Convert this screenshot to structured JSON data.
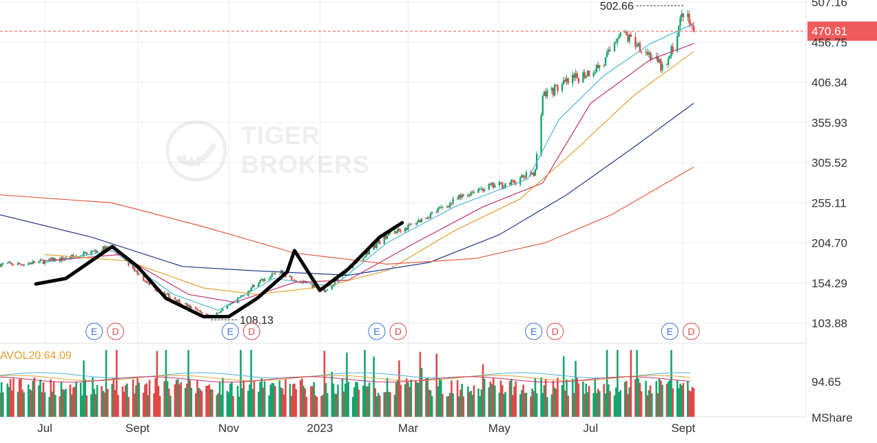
{
  "colors": {
    "up": "#16a46c",
    "down": "#e04848",
    "ma_fast": "#4bb3d6",
    "ma_mid": "#c0306a",
    "ma_slow": "#e0a030",
    "ma_long": "#1e3a8a",
    "ma_longest": "#e25a40",
    "price_tag_bg": "#ef5b5b",
    "grid": "#ececec",
    "axis_text": "#333333",
    "earnings_E": "#3a6fd8",
    "earnings_D": "#d84a4a",
    "avol": "#e0a030"
  },
  "watermark": {
    "text_line1": "TIGER",
    "text_line2": "BROKERS"
  },
  "price_axis": {
    "ticks": [
      "507.16",
      "456.75",
      "406.34",
      "355.93",
      "305.52",
      "255.11",
      "204.70",
      "154.29",
      "103.88"
    ]
  },
  "volume_axis": {
    "tick": "94.65",
    "unit": "MShare"
  },
  "time_axis": {
    "labels": [
      "Jul",
      "Sept",
      "Nov",
      "2023",
      "Mar",
      "May",
      "Jul",
      "Sept"
    ]
  },
  "current_price": "470.61",
  "annotations": {
    "high": "502.66",
    "low": "108.13"
  },
  "avol_label": "AVOL20:64.09",
  "earnings_markers": [
    {
      "E": "E",
      "D": "D"
    },
    {
      "E": "E",
      "D": "D"
    },
    {
      "E": "E",
      "D": "D"
    },
    {
      "E": "E",
      "D": "D"
    },
    {
      "E": "E",
      "D": "D"
    }
  ],
  "chart_data": {
    "type": "candlestick",
    "y_range": [
      103.88,
      507.16
    ],
    "current_price": 470.61,
    "high": 502.66,
    "low": 108.13,
    "price_path": [
      [
        "2022-06-15",
        178
      ],
      [
        "2022-07-15",
        185
      ],
      [
        "2022-08-05",
        195
      ],
      [
        "2022-08-15",
        200
      ],
      [
        "2022-09-10",
        150
      ],
      [
        "2022-10-10",
        120
      ],
      [
        "2022-10-20",
        112
      ],
      [
        "2022-11-05",
        130
      ],
      [
        "2022-11-20",
        155
      ],
      [
        "2022-12-05",
        168
      ],
      [
        "2022-12-20",
        155
      ],
      [
        "2023-01-05",
        145
      ],
      [
        "2023-01-25",
        180
      ],
      [
        "2023-02-15",
        215
      ],
      [
        "2023-03-01",
        225
      ],
      [
        "2023-03-25",
        250
      ],
      [
        "2023-04-15",
        272
      ],
      [
        "2023-05-10",
        280
      ],
      [
        "2023-05-25",
        295
      ],
      [
        "2023-05-30",
        390
      ],
      [
        "2023-06-20",
        410
      ],
      [
        "2023-07-10",
        430
      ],
      [
        "2023-07-20",
        470
      ],
      [
        "2023-08-05",
        450
      ],
      [
        "2023-08-20",
        420
      ],
      [
        "2023-09-01",
        495
      ],
      [
        "2023-09-08",
        470.61
      ]
    ],
    "moving_averages": [
      {
        "color_key": "ma_fast",
        "values": [
          [
            "2022-07-01",
            180
          ],
          [
            "2022-08-15",
            195
          ],
          [
            "2022-09-25",
            140
          ],
          [
            "2022-10-25",
            120
          ],
          [
            "2022-12-01",
            160
          ],
          [
            "2023-01-10",
            150
          ],
          [
            "2023-02-15",
            205
          ],
          [
            "2023-04-01",
            250
          ],
          [
            "2023-05-20",
            285
          ],
          [
            "2023-06-10",
            360
          ],
          [
            "2023-07-10",
            415
          ],
          [
            "2023-08-10",
            455
          ],
          [
            "2023-09-08",
            480
          ]
        ]
      },
      {
        "color_key": "ma_mid",
        "values": [
          [
            "2022-07-01",
            182
          ],
          [
            "2022-08-20",
            190
          ],
          [
            "2022-10-05",
            140
          ],
          [
            "2022-11-05",
            130
          ],
          [
            "2022-12-15",
            155
          ],
          [
            "2023-01-20",
            158
          ],
          [
            "2023-03-01",
            200
          ],
          [
            "2023-04-20",
            250
          ],
          [
            "2023-05-30",
            280
          ],
          [
            "2023-07-01",
            380
          ],
          [
            "2023-08-10",
            435
          ],
          [
            "2023-09-08",
            455
          ]
        ]
      },
      {
        "color_key": "ma_slow",
        "values": [
          [
            "2022-07-01",
            190
          ],
          [
            "2022-08-25",
            182
          ],
          [
            "2022-10-15",
            148
          ],
          [
            "2022-11-20",
            140
          ],
          [
            "2023-01-05",
            150
          ],
          [
            "2023-02-15",
            170
          ],
          [
            "2023-04-01",
            220
          ],
          [
            "2023-05-15",
            260
          ],
          [
            "2023-06-20",
            320
          ],
          [
            "2023-07-30",
            390
          ],
          [
            "2023-09-08",
            445
          ]
        ]
      },
      {
        "color_key": "ma_long",
        "values": [
          [
            "2022-06-01",
            240
          ],
          [
            "2022-08-01",
            212
          ],
          [
            "2022-10-01",
            175
          ],
          [
            "2022-11-15",
            170
          ],
          [
            "2023-01-20",
            164
          ],
          [
            "2023-03-15",
            180
          ],
          [
            "2023-05-01",
            215
          ],
          [
            "2023-06-15",
            265
          ],
          [
            "2023-07-30",
            325
          ],
          [
            "2023-09-08",
            380
          ]
        ]
      },
      {
        "color_key": "ma_longest",
        "values": [
          [
            "2022-06-01",
            265
          ],
          [
            "2022-08-15",
            255
          ],
          [
            "2022-10-15",
            225
          ],
          [
            "2022-12-15",
            192
          ],
          [
            "2023-02-15",
            178
          ],
          [
            "2023-04-15",
            185
          ],
          [
            "2023-06-01",
            205
          ],
          [
            "2023-07-15",
            240
          ],
          [
            "2023-09-08",
            300
          ]
        ]
      }
    ],
    "volume": {
      "unit": "MShare",
      "max": 94.65,
      "avol20": 64.09
    },
    "drawing": {
      "type": "freehand",
      "color": "#000000"
    }
  }
}
